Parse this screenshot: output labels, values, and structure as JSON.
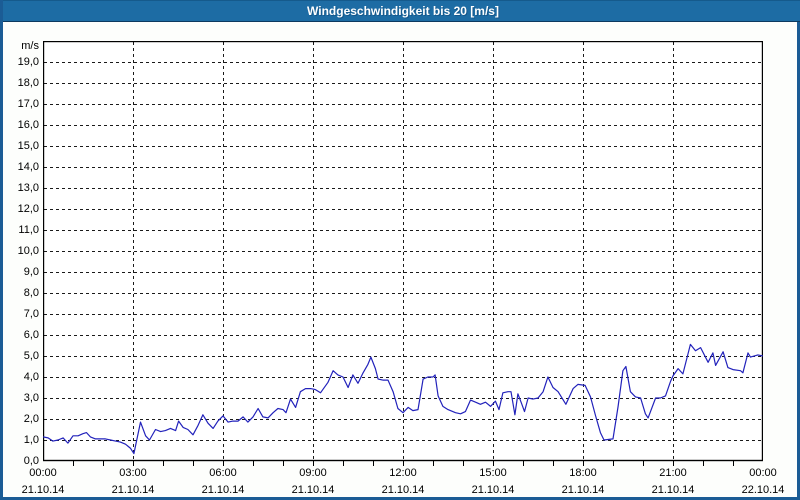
{
  "window": {
    "title": "Windgeschwindigkeit bis 20 [m/s]"
  },
  "colors": {
    "titlebar_bg": "#1d6ca4",
    "frame_border": "#1b5c95",
    "line": "#2222bb",
    "grid": "#1a1a1a",
    "axis": "#000000",
    "plot_bg": "#ffffff",
    "page_bg": "#fdfefc",
    "title_text": "#ffffff"
  },
  "chart_data": {
    "type": "line",
    "title": "Windgeschwindigkeit bis 20 [m/s]",
    "ylabel": "m/s",
    "xlabel": "",
    "ylim": [
      0,
      20
    ],
    "ytick_step": 1,
    "ytick_labels": [
      "0,0",
      "1,0",
      "2,0",
      "3,0",
      "4,0",
      "5,0",
      "6,0",
      "7,0",
      "8,0",
      "9,0",
      "10,0",
      "11,0",
      "12,0",
      "13,0",
      "14,0",
      "15,0",
      "16,0",
      "17,0",
      "18,0",
      "19,0"
    ],
    "x_hours_range": [
      0,
      24
    ],
    "x_major_step_hours": 3,
    "x_minor_step_hours": 1,
    "grid": "dashed",
    "legend_position": "none",
    "xticks": [
      {
        "time": "00:00",
        "date": "21.10.14"
      },
      {
        "time": "03:00",
        "date": "21.10.14"
      },
      {
        "time": "06:00",
        "date": "21.10.14"
      },
      {
        "time": "09:00",
        "date": "21.10.14"
      },
      {
        "time": "12:00",
        "date": "21.10.14"
      },
      {
        "time": "15:00",
        "date": "21.10.14"
      },
      {
        "time": "18:00",
        "date": "21.10.14"
      },
      {
        "time": "21:00",
        "date": "21.10.14"
      },
      {
        "time": "00:00",
        "date": "22.10.14"
      }
    ],
    "series": [
      {
        "name": "Windgeschwindigkeit",
        "unit": "m/s",
        "points": [
          [
            0.0,
            1.15
          ],
          [
            0.17,
            1.1
          ],
          [
            0.33,
            0.95
          ],
          [
            0.5,
            1.0
          ],
          [
            0.67,
            1.1
          ],
          [
            0.83,
            0.85
          ],
          [
            1.0,
            1.2
          ],
          [
            1.17,
            1.2
          ],
          [
            1.33,
            1.3
          ],
          [
            1.45,
            1.35
          ],
          [
            1.58,
            1.15
          ],
          [
            1.75,
            1.05
          ],
          [
            1.92,
            1.05
          ],
          [
            2.08,
            1.05
          ],
          [
            2.25,
            1.0
          ],
          [
            2.42,
            0.95
          ],
          [
            2.58,
            0.9
          ],
          [
            2.75,
            0.8
          ],
          [
            2.92,
            0.6
          ],
          [
            3.03,
            0.35
          ],
          [
            3.25,
            1.85
          ],
          [
            3.42,
            1.2
          ],
          [
            3.55,
            1.0
          ],
          [
            3.75,
            1.5
          ],
          [
            3.92,
            1.4
          ],
          [
            4.08,
            1.45
          ],
          [
            4.25,
            1.55
          ],
          [
            4.42,
            1.45
          ],
          [
            4.52,
            1.9
          ],
          [
            4.67,
            1.6
          ],
          [
            4.83,
            1.5
          ],
          [
            5.0,
            1.25
          ],
          [
            5.17,
            1.7
          ],
          [
            5.33,
            2.2
          ],
          [
            5.5,
            1.8
          ],
          [
            5.67,
            1.55
          ],
          [
            5.83,
            1.9
          ],
          [
            6.0,
            2.15
          ],
          [
            6.17,
            1.85
          ],
          [
            6.33,
            1.9
          ],
          [
            6.5,
            1.9
          ],
          [
            6.67,
            2.1
          ],
          [
            6.83,
            1.85
          ],
          [
            7.0,
            2.1
          ],
          [
            7.17,
            2.5
          ],
          [
            7.33,
            2.1
          ],
          [
            7.5,
            2.05
          ],
          [
            7.67,
            2.3
          ],
          [
            7.83,
            2.5
          ],
          [
            8.0,
            2.45
          ],
          [
            8.1,
            2.3
          ],
          [
            8.25,
            2.95
          ],
          [
            8.42,
            2.55
          ],
          [
            8.58,
            3.3
          ],
          [
            8.75,
            3.45
          ],
          [
            8.92,
            3.45
          ],
          [
            9.08,
            3.4
          ],
          [
            9.25,
            3.25
          ],
          [
            9.5,
            3.75
          ],
          [
            9.67,
            4.3
          ],
          [
            9.83,
            4.1
          ],
          [
            10.0,
            4.0
          ],
          [
            10.17,
            3.5
          ],
          [
            10.33,
            4.1
          ],
          [
            10.5,
            3.7
          ],
          [
            10.67,
            4.2
          ],
          [
            10.83,
            4.6
          ],
          [
            10.93,
            4.95
          ],
          [
            11.08,
            4.4
          ],
          [
            11.17,
            3.9
          ],
          [
            11.33,
            3.85
          ],
          [
            11.5,
            3.85
          ],
          [
            11.67,
            3.3
          ],
          [
            11.83,
            2.5
          ],
          [
            12.0,
            2.3
          ],
          [
            12.17,
            2.55
          ],
          [
            12.33,
            2.4
          ],
          [
            12.5,
            2.45
          ],
          [
            12.67,
            3.9
          ],
          [
            12.83,
            4.0
          ],
          [
            13.0,
            4.0
          ],
          [
            13.07,
            4.1
          ],
          [
            13.17,
            3.1
          ],
          [
            13.33,
            2.6
          ],
          [
            13.5,
            2.45
          ],
          [
            13.75,
            2.3
          ],
          [
            13.92,
            2.25
          ],
          [
            14.08,
            2.35
          ],
          [
            14.25,
            2.9
          ],
          [
            14.42,
            2.8
          ],
          [
            14.58,
            2.7
          ],
          [
            14.75,
            2.8
          ],
          [
            14.92,
            2.6
          ],
          [
            15.08,
            2.85
          ],
          [
            15.2,
            2.45
          ],
          [
            15.33,
            3.25
          ],
          [
            15.5,
            3.3
          ],
          [
            15.6,
            3.3
          ],
          [
            15.73,
            2.2
          ],
          [
            15.83,
            3.2
          ],
          [
            15.95,
            2.75
          ],
          [
            16.05,
            2.35
          ],
          [
            16.17,
            3.0
          ],
          [
            16.33,
            2.95
          ],
          [
            16.5,
            3.0
          ],
          [
            16.67,
            3.3
          ],
          [
            16.83,
            4.0
          ],
          [
            17.0,
            3.5
          ],
          [
            17.17,
            3.3
          ],
          [
            17.43,
            2.7
          ],
          [
            17.67,
            3.45
          ],
          [
            17.83,
            3.65
          ],
          [
            18.07,
            3.6
          ],
          [
            18.25,
            3.05
          ],
          [
            18.42,
            2.15
          ],
          [
            18.58,
            1.35
          ],
          [
            18.7,
            1.0
          ],
          [
            19.0,
            1.05
          ],
          [
            19.17,
            2.6
          ],
          [
            19.33,
            4.3
          ],
          [
            19.43,
            4.5
          ],
          [
            19.58,
            3.3
          ],
          [
            19.75,
            3.05
          ],
          [
            19.92,
            3.0
          ],
          [
            20.08,
            2.25
          ],
          [
            20.17,
            2.05
          ],
          [
            20.42,
            3.0
          ],
          [
            20.58,
            3.0
          ],
          [
            20.75,
            3.1
          ],
          [
            20.92,
            3.8
          ],
          [
            21.0,
            4.05
          ],
          [
            21.17,
            4.4
          ],
          [
            21.33,
            4.15
          ],
          [
            21.58,
            5.55
          ],
          [
            21.75,
            5.25
          ],
          [
            21.92,
            5.4
          ],
          [
            22.17,
            4.7
          ],
          [
            22.33,
            5.15
          ],
          [
            22.42,
            4.55
          ],
          [
            22.67,
            5.2
          ],
          [
            22.83,
            4.45
          ],
          [
            23.0,
            4.35
          ],
          [
            23.25,
            4.3
          ],
          [
            23.33,
            4.2
          ],
          [
            23.5,
            5.15
          ],
          [
            23.58,
            4.95
          ],
          [
            23.83,
            5.05
          ],
          [
            24.0,
            5.0
          ]
        ]
      }
    ]
  }
}
